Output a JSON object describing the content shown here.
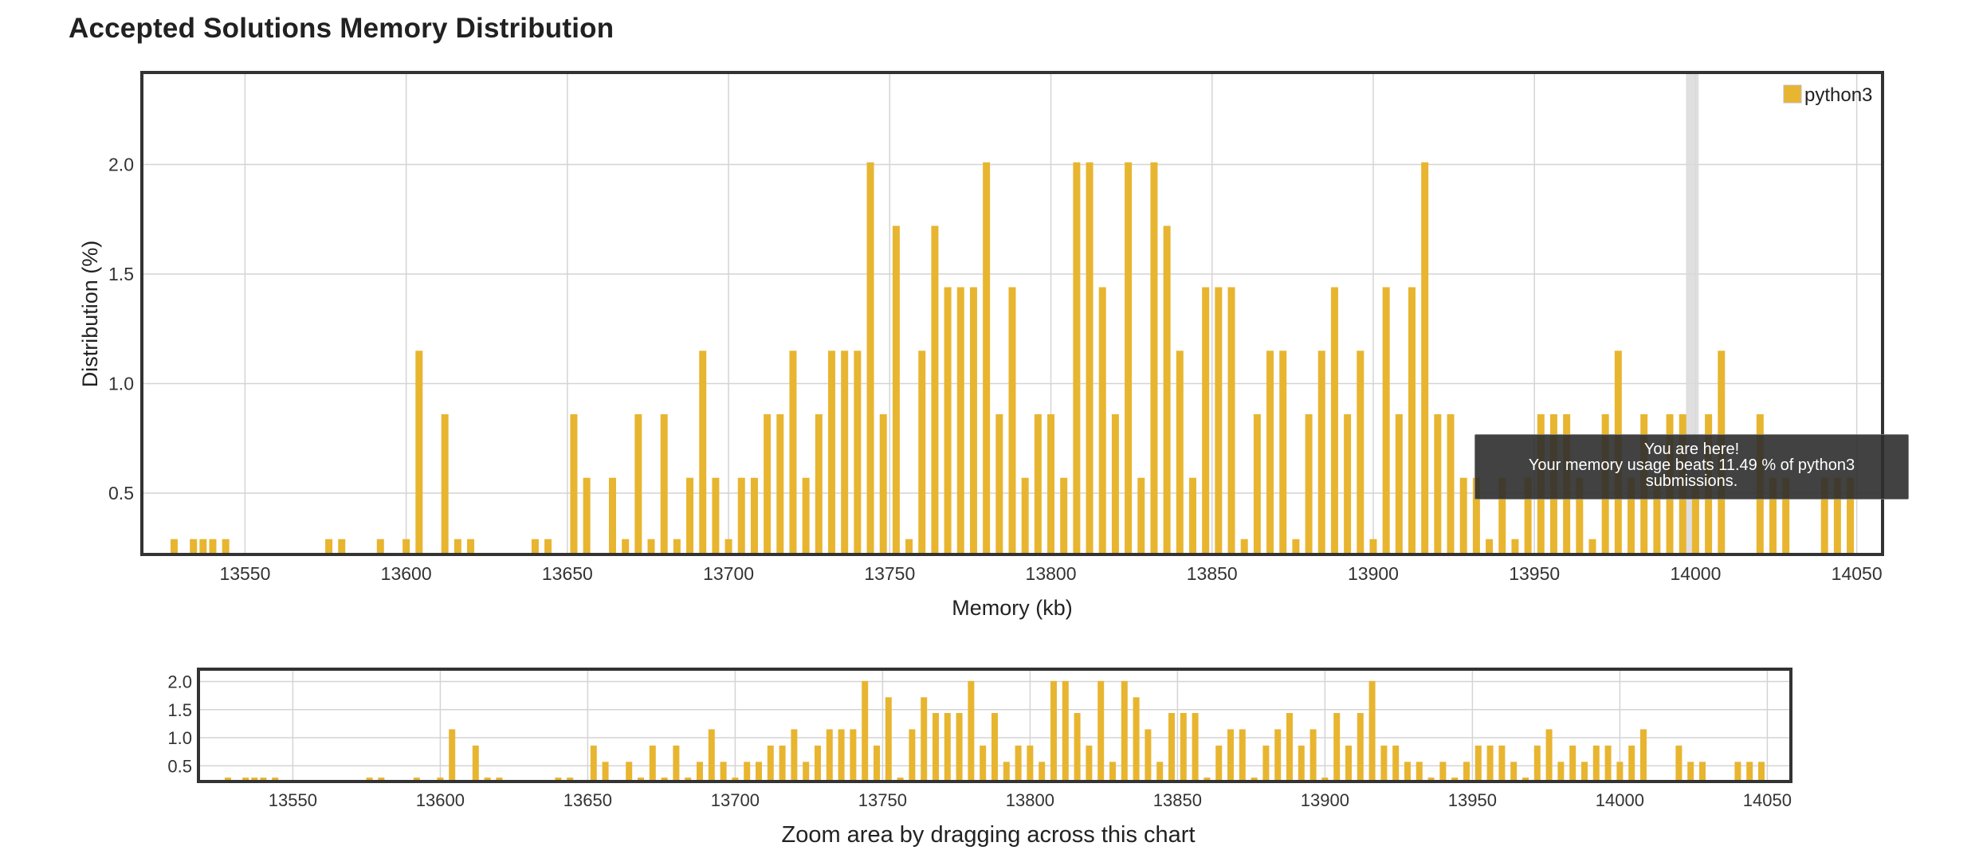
{
  "page": {
    "title": "Accepted Solutions Memory Distribution"
  },
  "tooltip": {
    "line1": "You are here!",
    "line2": "Your memory usage beats 11.49 % of python3",
    "line3": "submissions."
  },
  "navigator": {
    "caption": "Zoom area by dragging across this chart"
  },
  "colors": {
    "bar": "#e8b530",
    "highlight_band": "#d9d9d9",
    "grid": "#d4d4d4",
    "frame": "#333333"
  },
  "chart_data": {
    "type": "bar",
    "title": "Accepted Solutions Memory Distribution",
    "xlabel": "Memory (kb)",
    "ylabel": "Distribution (%)",
    "legend": {
      "entries": [
        "python3"
      ],
      "placement": "top-right"
    },
    "series": [
      {
        "name": "python3",
        "x": [
          13528,
          13534,
          13537,
          13540,
          13544,
          13576,
          13580,
          13592,
          13600,
          13604,
          13612,
          13616,
          13620,
          13640,
          13644,
          13652,
          13656,
          13664,
          13668,
          13672,
          13676,
          13680,
          13684,
          13688,
          13692,
          13696,
          13700,
          13704,
          13708,
          13712,
          13716,
          13720,
          13724,
          13728,
          13732,
          13736,
          13740,
          13744,
          13748,
          13752,
          13756,
          13760,
          13764,
          13768,
          13772,
          13776,
          13780,
          13784,
          13788,
          13792,
          13796,
          13800,
          13804,
          13808,
          13812,
          13816,
          13820,
          13824,
          13828,
          13832,
          13836,
          13840,
          13844,
          13848,
          13852,
          13856,
          13860,
          13864,
          13868,
          13872,
          13876,
          13880,
          13884,
          13888,
          13892,
          13896,
          13900,
          13904,
          13908,
          13912,
          13916,
          13920,
          13924,
          13928,
          13932,
          13936,
          13940,
          13944,
          13948,
          13952,
          13956,
          13960,
          13964,
          13968,
          13972,
          13976,
          13980,
          13984,
          13988,
          13992,
          13996,
          14000,
          14004,
          14008,
          14020,
          14024,
          14028,
          14040,
          14044,
          14048
        ],
        "values": [
          0.29,
          0.29,
          0.29,
          0.29,
          0.29,
          0.29,
          0.29,
          0.29,
          0.29,
          1.15,
          0.86,
          0.29,
          0.29,
          0.29,
          0.29,
          0.86,
          0.57,
          0.57,
          0.29,
          0.86,
          0.29,
          0.86,
          0.29,
          0.57,
          1.15,
          0.57,
          0.29,
          0.57,
          0.57,
          0.86,
          0.86,
          1.15,
          0.57,
          0.86,
          1.15,
          1.15,
          1.15,
          2.01,
          0.86,
          1.72,
          0.29,
          1.15,
          1.72,
          1.44,
          1.44,
          1.44,
          2.01,
          0.86,
          1.44,
          0.57,
          0.86,
          0.86,
          0.57,
          2.01,
          2.01,
          1.44,
          0.86,
          2.01,
          0.57,
          2.01,
          1.72,
          1.15,
          0.57,
          1.44,
          1.44,
          1.44,
          0.29,
          0.86,
          1.15,
          1.15,
          0.29,
          0.86,
          1.15,
          1.44,
          0.86,
          1.15,
          0.29,
          1.44,
          0.86,
          1.44,
          2.01,
          0.86,
          0.86,
          0.57,
          0.57,
          0.29,
          0.57,
          0.29,
          0.57,
          0.86,
          0.86,
          0.86,
          0.57,
          0.29,
          0.86,
          1.15,
          0.57,
          0.86,
          0.57,
          0.86,
          0.86,
          0.57,
          0.86,
          1.15,
          0.86,
          0.57,
          0.57,
          0.57,
          0.57,
          0.57
        ]
      }
    ],
    "highlight_x": 13999,
    "xlim": [
      13518,
      14058
    ],
    "ylim": [
      0.22,
      2.42
    ],
    "x_ticks": [
      13550,
      13600,
      13650,
      13700,
      13750,
      13800,
      13850,
      13900,
      13950,
      14000,
      14050
    ],
    "y_ticks": [
      0.5,
      1.0,
      1.5,
      2.0
    ],
    "grid": true
  }
}
